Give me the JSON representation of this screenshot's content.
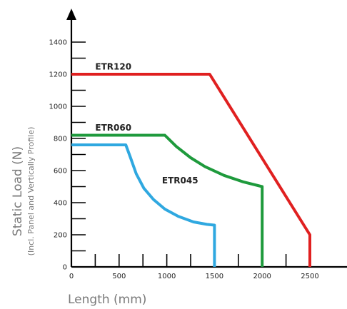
{
  "chart_data": {
    "type": "line",
    "xlabel": "Length (mm)",
    "ylabel": "Static Load (N)",
    "ylabel_sub": "(Incl. Panel and Vertically Profile)",
    "xlim": [
      0,
      2700
    ],
    "ylim": [
      0,
      1450
    ],
    "x_ticks": [
      0,
      250,
      500,
      750,
      1000,
      1250,
      1500,
      1750,
      2000,
      2250,
      2500
    ],
    "x_tick_labels": [
      "0",
      "500",
      "1000",
      "1500",
      "2000",
      "2500"
    ],
    "x_tick_label_values": [
      0,
      500,
      1000,
      1500,
      2000,
      2500
    ],
    "y_ticks": [
      100,
      200,
      300,
      400,
      500,
      600,
      700,
      800,
      900,
      1000,
      1100,
      1200,
      1300,
      1400
    ],
    "y_tick_labels": [
      "0",
      "200",
      "400",
      "600",
      "800",
      "1000",
      "1200",
      "1400"
    ],
    "y_tick_label_values": [
      0,
      200,
      400,
      600,
      800,
      1000,
      1200,
      1400
    ],
    "grid": false,
    "legend": "none",
    "series": [
      {
        "name": "ETR120",
        "color": "#e02020",
        "label_at": [
          250,
          1230
        ],
        "points": [
          [
            0,
            1200
          ],
          [
            1450,
            1200
          ],
          [
            2500,
            200
          ],
          [
            2500,
            0
          ]
        ]
      },
      {
        "name": "ETR060",
        "color": "#1e9a3c",
        "label_at": [
          250,
          850
        ],
        "points": [
          [
            0,
            820
          ],
          [
            980,
            820
          ],
          [
            1100,
            750
          ],
          [
            1250,
            680
          ],
          [
            1400,
            625
          ],
          [
            1600,
            570
          ],
          [
            1800,
            530
          ],
          [
            2000,
            500
          ],
          [
            2000,
            0
          ]
        ]
      },
      {
        "name": "ETR045",
        "color": "#2fa8e0",
        "label_at": [
          950,
          520
        ],
        "points": [
          [
            0,
            760
          ],
          [
            570,
            760
          ],
          [
            620,
            680
          ],
          [
            680,
            580
          ],
          [
            760,
            490
          ],
          [
            860,
            420
          ],
          [
            980,
            360
          ],
          [
            1120,
            315
          ],
          [
            1280,
            280
          ],
          [
            1420,
            265
          ],
          [
            1500,
            260
          ],
          [
            1500,
            0
          ]
        ]
      }
    ]
  }
}
